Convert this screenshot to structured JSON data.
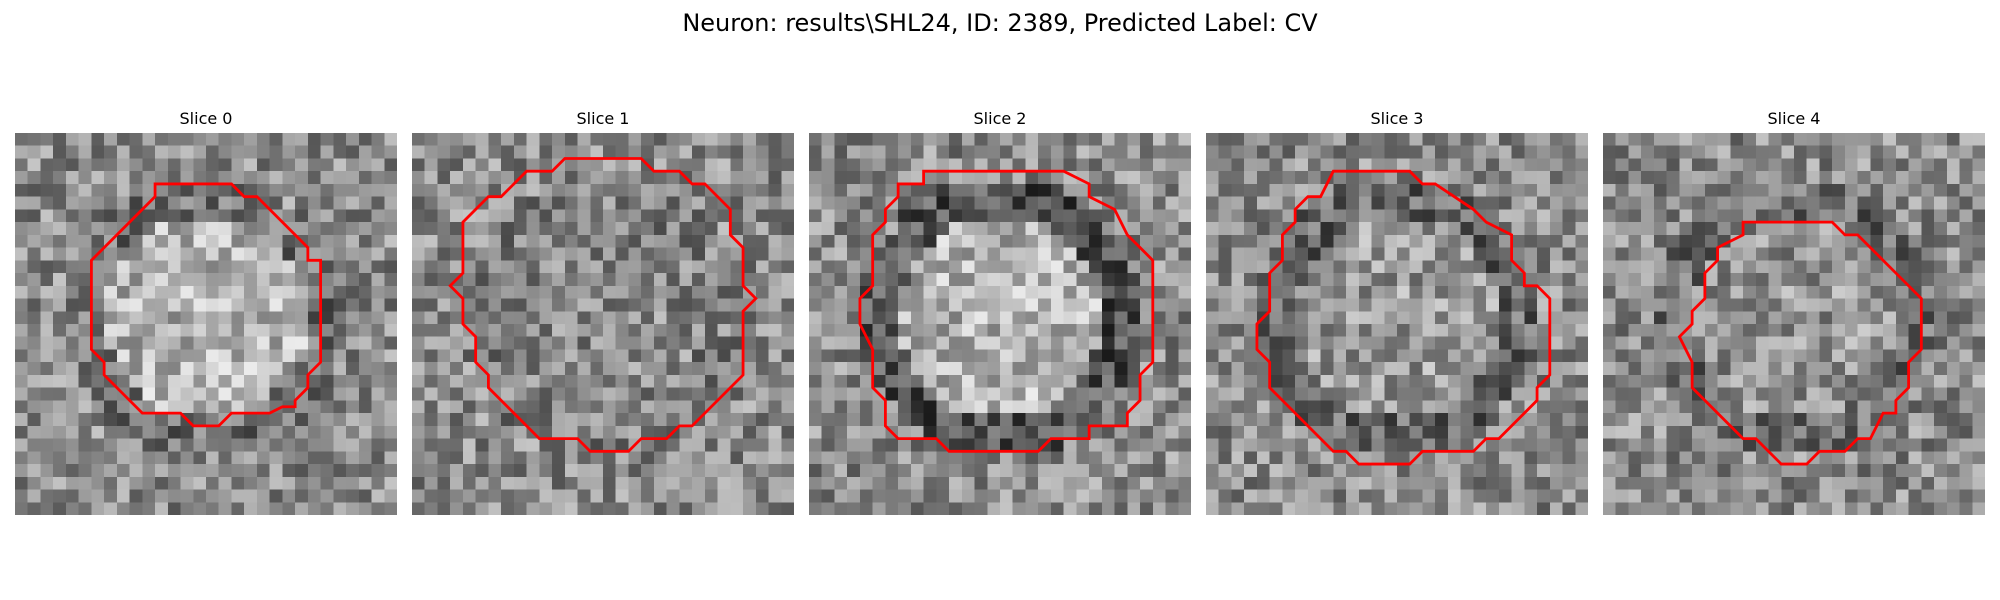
{
  "figure": {
    "title": "Neuron: results\\SHL24, ID: 2389, Predicted Label: CV"
  },
  "colors": {
    "contour": "#ff0000",
    "background": "#ffffff"
  },
  "panels": [
    {
      "label": "Slice 0",
      "seed": 11,
      "center_brightness": 0.62,
      "ring_darkness": 0.32
    },
    {
      "label": "Slice 1",
      "seed": 23,
      "center_brightness": 0.46,
      "ring_darkness": 0.38
    },
    {
      "label": "Slice 2",
      "seed": 37,
      "center_brightness": 0.62,
      "ring_darkness": 0.2
    },
    {
      "label": "Slice 3",
      "seed": 53,
      "center_brightness": 0.52,
      "ring_darkness": 0.28
    },
    {
      "label": "Slice 4",
      "seed": 71,
      "center_brightness": 0.5,
      "ring_darkness": 0.3
    }
  ]
}
